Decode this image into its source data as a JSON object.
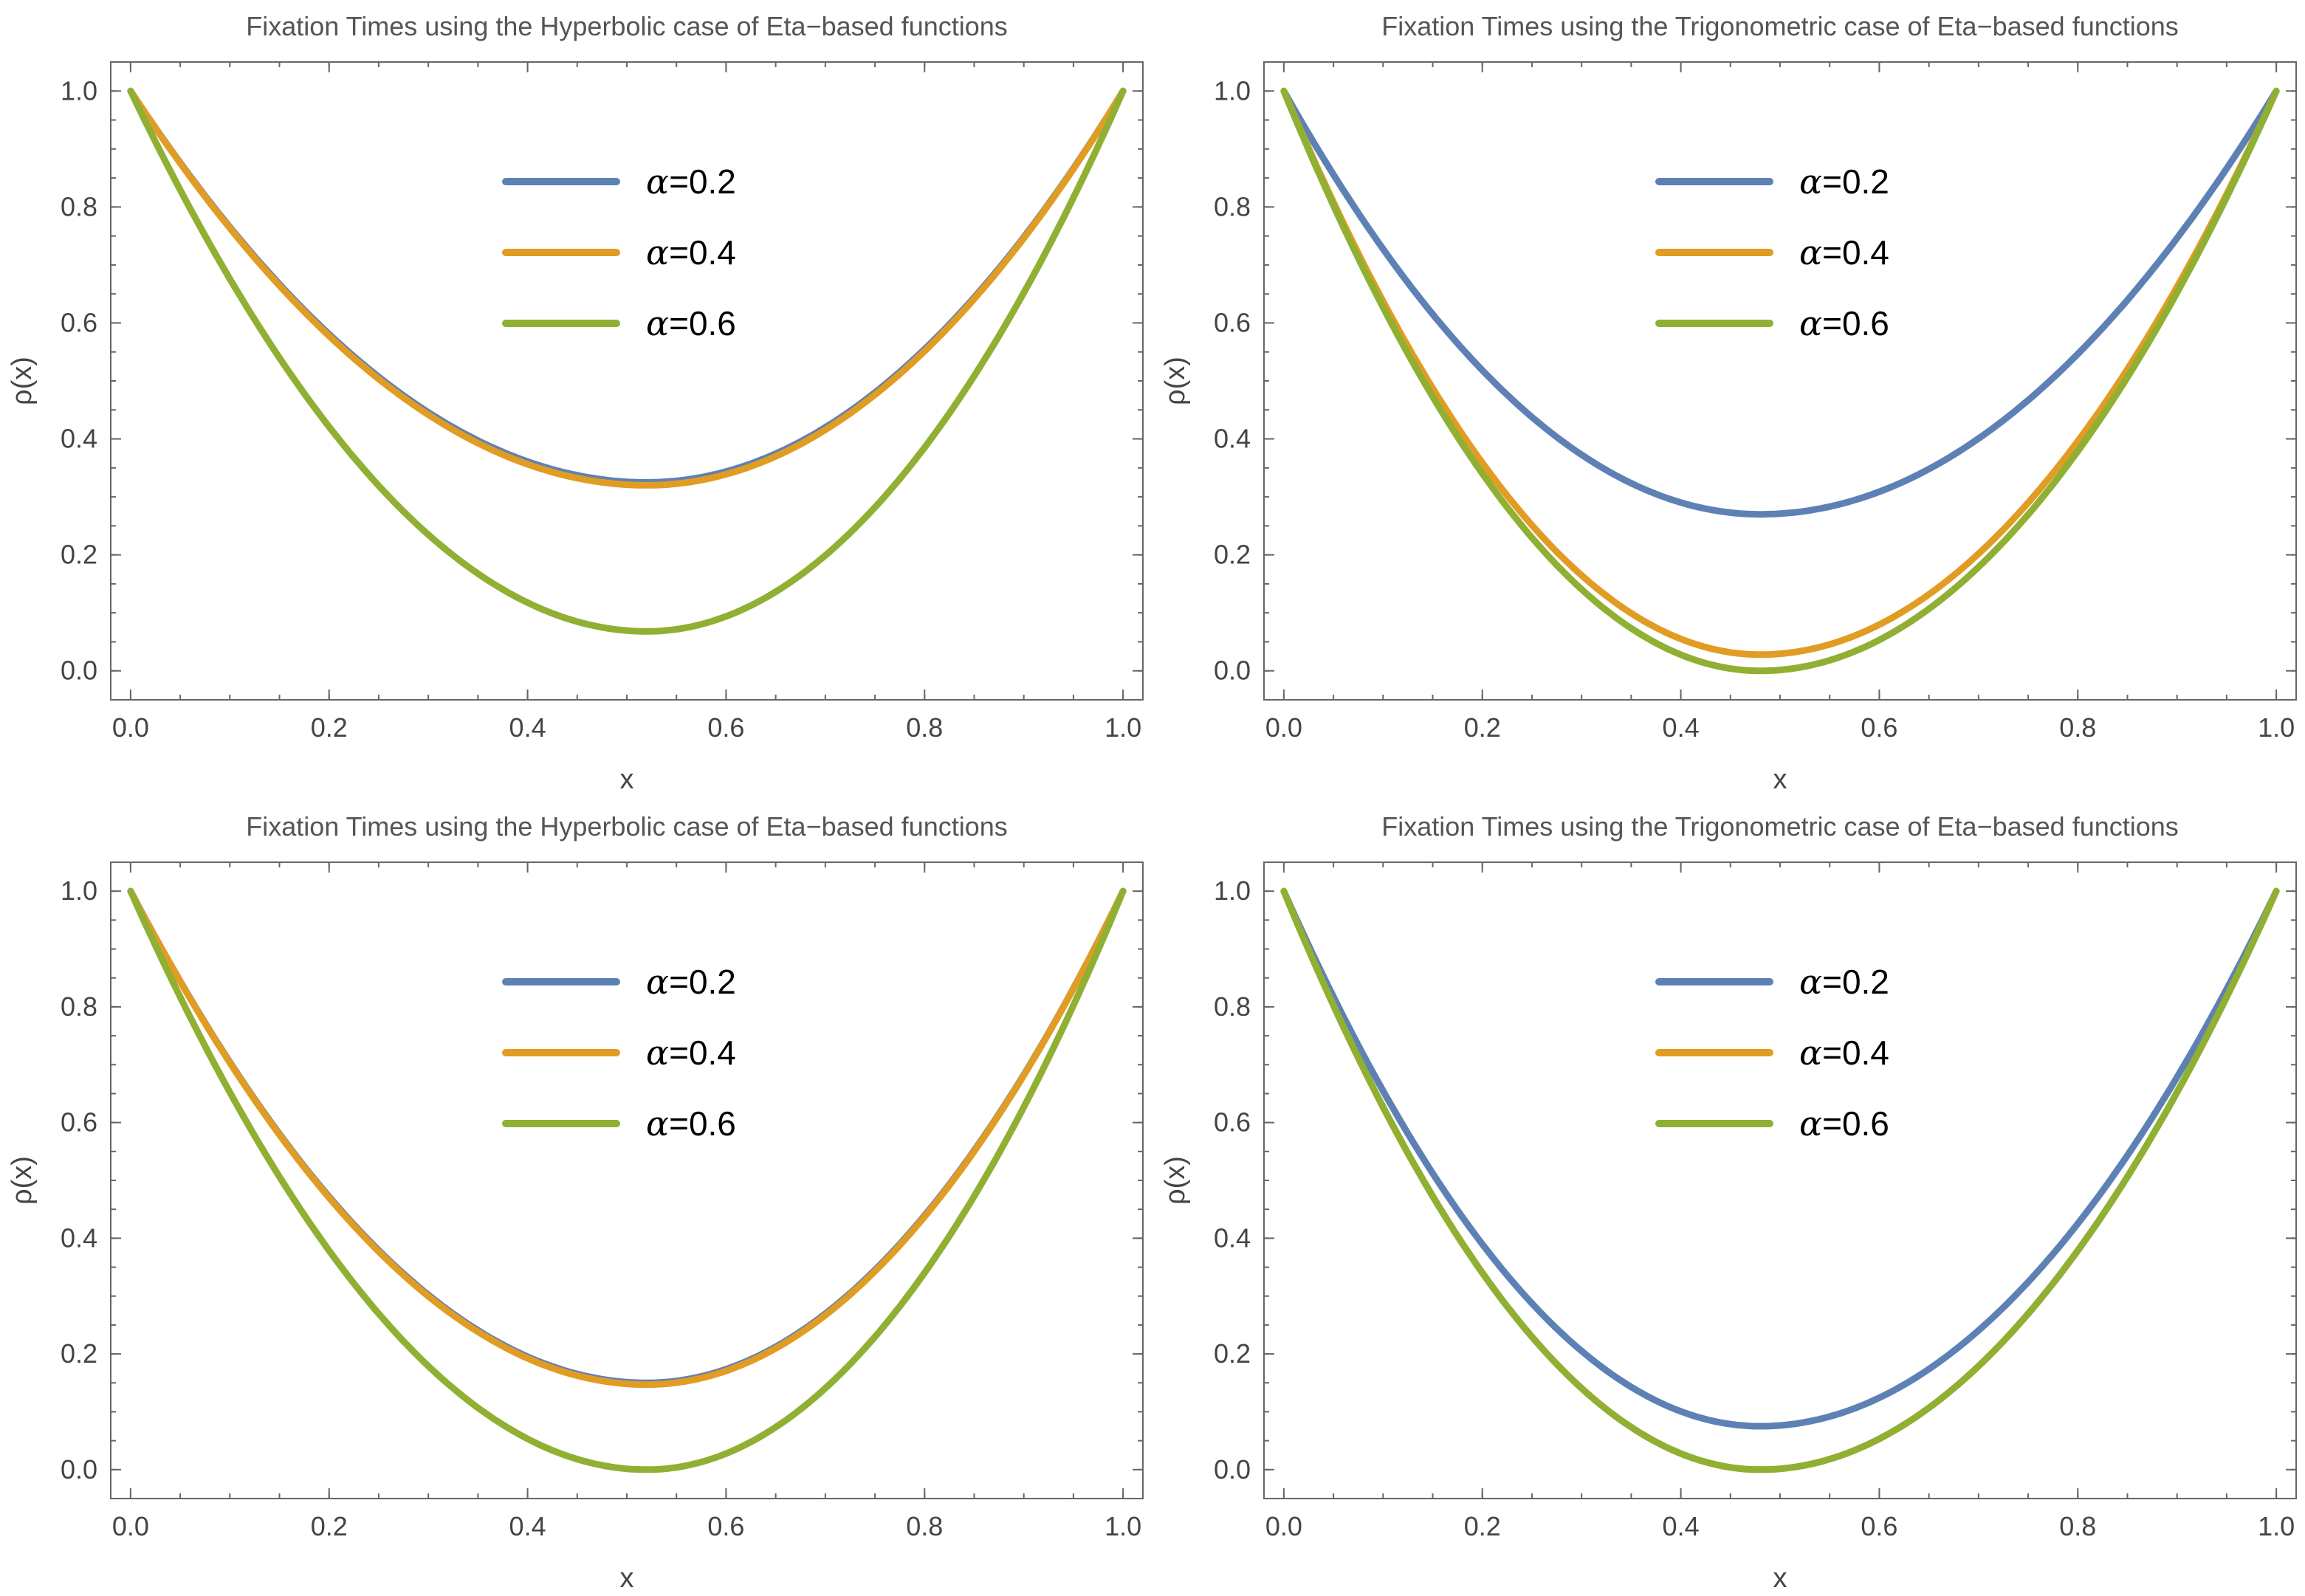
{
  "colors": {
    "alpha_0_2": "#5E81B5",
    "alpha_0_4": "#E19C24",
    "alpha_0_6": "#8FB032"
  },
  "chart_data": [
    {
      "type": "line",
      "title": "Fixation Times using the Hyperbolic case of Eta−based functions",
      "xlabel": "x",
      "ylabel": "ρ(x)",
      "xlim": [
        -0.02,
        1.02
      ],
      "ylim": [
        -0.05,
        1.05
      ],
      "xticks": [
        "0.0",
        "0.2",
        "0.4",
        "0.6",
        "0.8",
        "1.0"
      ],
      "yticks": [
        "0.0",
        "0.2",
        "0.4",
        "0.6",
        "0.8",
        "1.0"
      ],
      "legend": {
        "position": "top-center",
        "alpha_symbol": "α"
      },
      "series": [
        {
          "name": "=0.2",
          "color": "#5E81B5",
          "min_x": 0.52,
          "min_y": 0.325
        },
        {
          "name": "=0.4",
          "color": "#E19C24",
          "min_x": 0.52,
          "min_y": 0.32
        },
        {
          "name": "=0.6",
          "color": "#8FB032",
          "min_x": 0.52,
          "min_y": 0.068
        }
      ]
    },
    {
      "type": "line",
      "title": "Fixation Times using the Trigonometric case of Eta−based functions",
      "xlabel": "x",
      "ylabel": "ρ(x)",
      "xlim": [
        -0.02,
        1.02
      ],
      "ylim": [
        -0.05,
        1.05
      ],
      "xticks": [
        "0.0",
        "0.2",
        "0.4",
        "0.6",
        "0.8",
        "1.0"
      ],
      "yticks": [
        "0.0",
        "0.2",
        "0.4",
        "0.6",
        "0.8",
        "1.0"
      ],
      "legend": {
        "position": "top-center",
        "alpha_symbol": "α"
      },
      "series": [
        {
          "name": "=0.2",
          "color": "#5E81B5",
          "min_x": 0.48,
          "min_y": 0.27
        },
        {
          "name": "=0.4",
          "color": "#E19C24",
          "min_x": 0.48,
          "min_y": 0.028
        },
        {
          "name": "=0.6",
          "color": "#8FB032",
          "min_x": 0.48,
          "min_y": 0.0
        }
      ]
    },
    {
      "type": "line",
      "title": "Fixation Times using the Hyperbolic case of Eta−based functions",
      "xlabel": "x",
      "ylabel": "ρ(x)",
      "xlim": [
        -0.02,
        1.02
      ],
      "ylim": [
        -0.05,
        1.05
      ],
      "xticks": [
        "0.0",
        "0.2",
        "0.4",
        "0.6",
        "0.8",
        "1.0"
      ],
      "yticks": [
        "0.0",
        "0.2",
        "0.4",
        "0.6",
        "0.8",
        "1.0"
      ],
      "legend": {
        "position": "top-center",
        "alpha_symbol": "α"
      },
      "series": [
        {
          "name": "=0.2",
          "color": "#5E81B5",
          "min_x": 0.52,
          "min_y": 0.15
        },
        {
          "name": "=0.4",
          "color": "#E19C24",
          "min_x": 0.52,
          "min_y": 0.147
        },
        {
          "name": "=0.6",
          "color": "#8FB032",
          "min_x": 0.52,
          "min_y": 0.0
        }
      ]
    },
    {
      "type": "line",
      "title": "Fixation Times using the Trigonometric case of Eta−based functions",
      "xlabel": "x",
      "ylabel": "ρ(x)",
      "xlim": [
        -0.02,
        1.02
      ],
      "ylim": [
        -0.05,
        1.05
      ],
      "xticks": [
        "0.0",
        "0.2",
        "0.4",
        "0.6",
        "0.8",
        "1.0"
      ],
      "yticks": [
        "0.0",
        "0.2",
        "0.4",
        "0.6",
        "0.8",
        "1.0"
      ],
      "legend": {
        "position": "top-center",
        "alpha_symbol": "α"
      },
      "series": [
        {
          "name": "=0.2",
          "color": "#5E81B5",
          "min_x": 0.48,
          "min_y": 0.075
        },
        {
          "name": "=0.4",
          "color": "#E19C24",
          "min_x": 0.48,
          "min_y": 0.0
        },
        {
          "name": "=0.6",
          "color": "#8FB032",
          "min_x": 0.48,
          "min_y": 0.0
        }
      ]
    }
  ]
}
